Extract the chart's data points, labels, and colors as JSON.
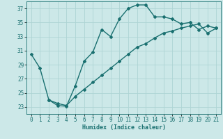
{
  "xlabel": "Humidex (Indice chaleur)",
  "background_color": "#cce8e8",
  "line_color": "#1a7070",
  "grid_color": "#aed4d4",
  "xlim": [
    -0.5,
    21.5
  ],
  "ylim": [
    22,
    38
  ],
  "xticks": [
    0,
    1,
    2,
    3,
    4,
    5,
    6,
    7,
    8,
    9,
    10,
    11,
    12,
    13,
    14,
    15,
    16,
    17,
    18,
    19,
    20,
    21
  ],
  "yticks": [
    23,
    25,
    27,
    29,
    31,
    33,
    35,
    37
  ],
  "curve1_x": [
    0,
    1,
    2,
    3,
    4,
    5,
    6,
    7,
    8,
    9,
    10,
    11,
    12,
    13,
    14,
    15,
    16,
    17,
    18,
    19,
    20,
    21
  ],
  "curve1_y": [
    30.5,
    28.5,
    24.0,
    23.2,
    23.1,
    26.0,
    29.5,
    30.8,
    34.0,
    33.0,
    35.5,
    37.0,
    37.5,
    37.5,
    35.8,
    35.8,
    35.5,
    34.8,
    35.0,
    34.0,
    34.5,
    34.2
  ],
  "curve2_x": [
    2,
    3,
    4,
    5,
    6,
    7,
    8,
    9,
    10,
    11,
    12,
    13,
    14,
    15,
    16,
    17,
    18,
    19,
    20,
    21
  ],
  "curve2_y": [
    24.0,
    23.5,
    23.2,
    24.5,
    25.5,
    26.5,
    27.5,
    28.5,
    29.5,
    30.5,
    31.5,
    32.0,
    32.8,
    33.5,
    33.8,
    34.2,
    34.5,
    34.8,
    33.5,
    34.2
  ],
  "marker_style": "D",
  "marker_size": 2.0,
  "line_width": 1.0,
  "axis_fontsize": 6,
  "tick_fontsize": 5.5
}
